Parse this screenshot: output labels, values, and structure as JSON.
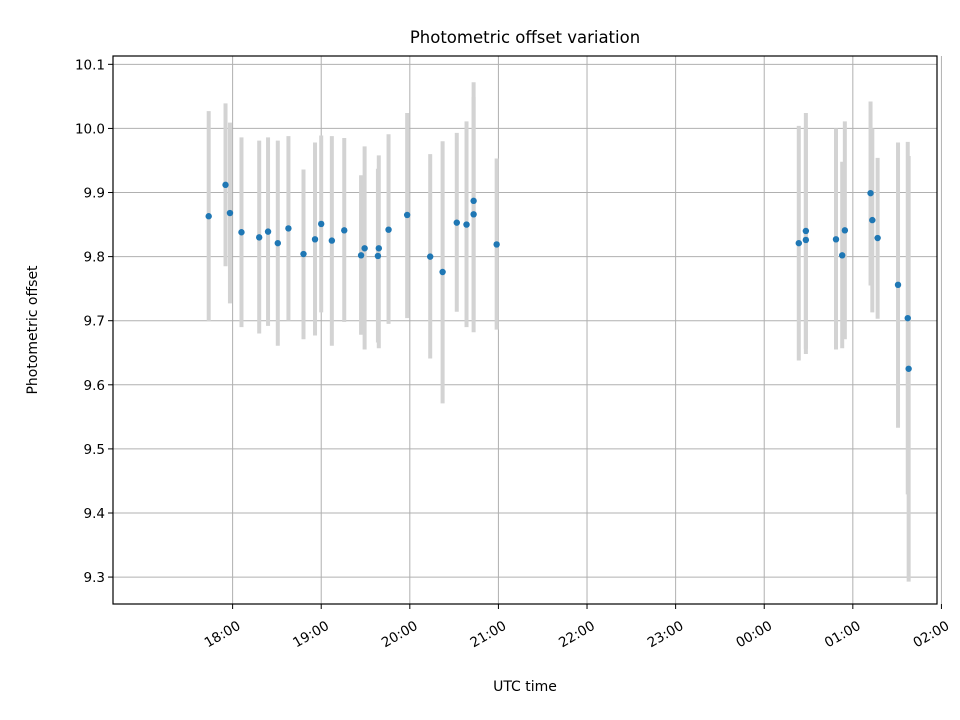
{
  "chart_data": {
    "type": "scatter",
    "title": "Photometric offset variation",
    "xlabel": "UTC time",
    "ylabel": "Photometric offset",
    "x_unit": "hours since 00:00 UTC of first day",
    "xlim": [
      16.65,
      25.95
    ],
    "ylim": [
      9.258,
      10.113
    ],
    "x_ticks": [
      {
        "value": 18,
        "label": "18:00"
      },
      {
        "value": 19,
        "label": "19:00"
      },
      {
        "value": 20,
        "label": "20:00"
      },
      {
        "value": 21,
        "label": "21:00"
      },
      {
        "value": 22,
        "label": "22:00"
      },
      {
        "value": 23,
        "label": "23:00"
      },
      {
        "value": 24,
        "label": "00:00"
      },
      {
        "value": 25,
        "label": "01:00"
      },
      {
        "value": 26,
        "label": "02:00"
      }
    ],
    "y_ticks": [
      {
        "value": 9.3,
        "label": "9.3"
      },
      {
        "value": 9.4,
        "label": "9.4"
      },
      {
        "value": 9.5,
        "label": "9.5"
      },
      {
        "value": 9.6,
        "label": "9.6"
      },
      {
        "value": 9.7,
        "label": "9.7"
      },
      {
        "value": 9.8,
        "label": "9.8"
      },
      {
        "value": 9.9,
        "label": "9.9"
      },
      {
        "value": 10.0,
        "label": "10.0"
      },
      {
        "value": 10.1,
        "label": "10.1"
      }
    ],
    "grid": true,
    "marker_color": "#1f77b4",
    "errorbar_color": "#d3d3d3",
    "series": [
      {
        "points": [
          {
            "x": 17.73,
            "y": 9.863,
            "lo": 9.699,
            "hi": 10.027
          },
          {
            "x": 17.92,
            "y": 9.912,
            "lo": 9.785,
            "hi": 10.039
          },
          {
            "x": 17.97,
            "y": 9.868,
            "lo": 9.727,
            "hi": 10.009
          },
          {
            "x": 18.1,
            "y": 9.838,
            "lo": 9.69,
            "hi": 9.986
          },
          {
            "x": 18.3,
            "y": 9.83,
            "lo": 9.68,
            "hi": 9.981
          },
          {
            "x": 18.4,
            "y": 9.839,
            "lo": 9.692,
            "hi": 9.986
          },
          {
            "x": 18.51,
            "y": 9.821,
            "lo": 9.661,
            "hi": 9.981
          },
          {
            "x": 18.63,
            "y": 9.844,
            "lo": 9.7,
            "hi": 9.988
          },
          {
            "x": 18.8,
            "y": 9.804,
            "lo": 9.671,
            "hi": 9.936
          },
          {
            "x": 18.93,
            "y": 9.827,
            "lo": 9.677,
            "hi": 9.978
          },
          {
            "x": 19.0,
            "y": 9.851,
            "lo": 9.713,
            "hi": 9.989
          },
          {
            "x": 19.12,
            "y": 9.825,
            "lo": 9.661,
            "hi": 9.988
          },
          {
            "x": 19.26,
            "y": 9.841,
            "lo": 9.698,
            "hi": 9.985
          },
          {
            "x": 19.45,
            "y": 9.802,
            "lo": 9.678,
            "hi": 9.927
          },
          {
            "x": 19.49,
            "y": 9.813,
            "lo": 9.655,
            "hi": 9.972
          },
          {
            "x": 19.64,
            "y": 9.801,
            "lo": 9.666,
            "hi": 9.937
          },
          {
            "x": 19.65,
            "y": 9.813,
            "lo": 9.657,
            "hi": 9.958
          },
          {
            "x": 19.76,
            "y": 9.842,
            "lo": 9.695,
            "hi": 9.991
          },
          {
            "x": 19.97,
            "y": 9.865,
            "lo": 9.704,
            "hi": 10.024
          },
          {
            "x": 20.23,
            "y": 9.8,
            "lo": 9.641,
            "hi": 9.96
          },
          {
            "x": 20.37,
            "y": 9.776,
            "lo": 9.571,
            "hi": 9.98
          },
          {
            "x": 20.53,
            "y": 9.853,
            "lo": 9.714,
            "hi": 9.993
          },
          {
            "x": 20.64,
            "y": 9.85,
            "lo": 9.69,
            "hi": 10.011
          },
          {
            "x": 20.72,
            "y": 9.866,
            "lo": 9.682,
            "hi": 10.049
          },
          {
            "x": 20.72,
            "y": 9.887,
            "lo": 9.702,
            "hi": 10.072
          },
          {
            "x": 20.98,
            "y": 9.819,
            "lo": 9.686,
            "hi": 9.953
          },
          {
            "x": 24.39,
            "y": 9.821,
            "lo": 9.638,
            "hi": 10.004
          },
          {
            "x": 24.47,
            "y": 9.84,
            "lo": 9.656,
            "hi": 10.024
          },
          {
            "x": 24.47,
            "y": 9.826,
            "lo": 9.648,
            "hi": 10.003
          },
          {
            "x": 24.81,
            "y": 9.827,
            "lo": 9.655,
            "hi": 10.0
          },
          {
            "x": 24.88,
            "y": 9.802,
            "lo": 9.657,
            "hi": 9.948
          },
          {
            "x": 24.91,
            "y": 9.841,
            "lo": 9.671,
            "hi": 10.011
          },
          {
            "x": 25.2,
            "y": 9.899,
            "lo": 9.755,
            "hi": 10.042
          },
          {
            "x": 25.22,
            "y": 9.857,
            "lo": 9.713,
            "hi": 10.0
          },
          {
            "x": 25.28,
            "y": 9.829,
            "lo": 9.703,
            "hi": 9.954
          },
          {
            "x": 25.51,
            "y": 9.756,
            "lo": 9.533,
            "hi": 9.978
          },
          {
            "x": 25.62,
            "y": 9.704,
            "lo": 9.429,
            "hi": 9.979
          },
          {
            "x": 25.63,
            "y": 9.625,
            "lo": 9.293,
            "hi": 9.957
          }
        ]
      }
    ]
  }
}
